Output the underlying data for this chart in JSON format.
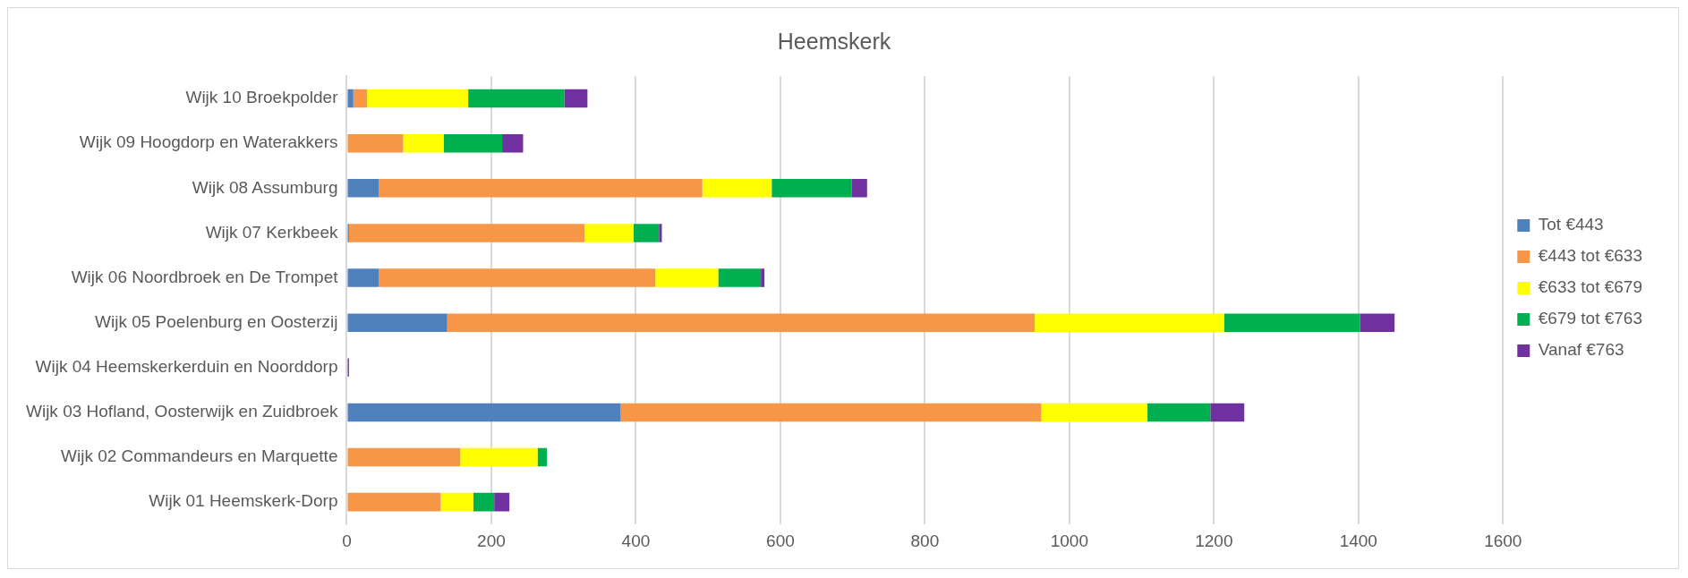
{
  "chart_data": {
    "type": "bar",
    "orientation": "horizontal",
    "stacked": true,
    "title": "Heemskerk",
    "categories": [
      "Wijk 10 Broekpolder",
      "Wijk 09 Hoogdorp en Waterakkers",
      "Wijk 08 Assumburg",
      "Wijk 07 Kerkbeek",
      "Wijk 06 Noordbroek en De Trompet",
      "Wijk 05 Poelenburg en Oosterzij",
      "Wijk 04 Heemskerkerduin en Noorddorp",
      "Wijk 03 Hofland, Oosterwijk en Zuidbroek",
      "Wijk 02 Commandeurs en Marquette",
      "Wijk 01 Heemskerk-Dorp"
    ],
    "series": [
      {
        "name": "Tot €443",
        "color": "#4f81bd",
        "values": [
          9,
          0,
          44,
          3,
          44,
          139,
          0,
          379,
          0,
          0
        ]
      },
      {
        "name": "€443 tot €633",
        "color": "#f79646",
        "values": [
          19,
          78,
          448,
          326,
          383,
          813,
          0,
          582,
          157,
          130
        ]
      },
      {
        "name": "€633 tot €679",
        "color": "#ffff00",
        "values": [
          140,
          56,
          96,
          68,
          87,
          262,
          0,
          147,
          107,
          45
        ]
      },
      {
        "name": "€679 tot €763",
        "color": "#00b050",
        "values": [
          133,
          81,
          111,
          35,
          59,
          188,
          0,
          87,
          13,
          29
        ]
      },
      {
        "name": "Vanaf €763",
        "color": "#7030a0",
        "values": [
          32,
          29,
          21,
          4,
          5,
          48,
          3,
          47,
          0,
          21
        ]
      }
    ],
    "xlim": [
      0,
      1600
    ],
    "xticks": [
      0,
      200,
      400,
      600,
      800,
      1000,
      1200,
      1400,
      1600
    ],
    "grid": "x",
    "legend": "right"
  }
}
